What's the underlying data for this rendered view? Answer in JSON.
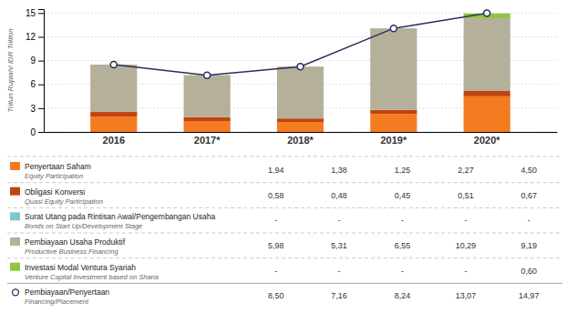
{
  "chart_data": {
    "type": "bar",
    "stacked": true,
    "grid": true,
    "ylabel": "Triliun Rupiah/ IDR Trillion",
    "categories": [
      "2016",
      "2017*",
      "2018*",
      "2019*",
      "2020*"
    ],
    "ylim": [
      0,
      15.5
    ],
    "yticks": [
      0,
      3,
      6,
      9,
      12,
      15
    ],
    "series": [
      {
        "name": "Penyertaan Saham",
        "name_en": "Equity Participation",
        "type": "bar",
        "color": "#F47B20",
        "values": [
          1.94,
          1.38,
          1.25,
          2.27,
          4.5
        ],
        "value_labels": [
          "1,94",
          "1,38",
          "1,25",
          "2,27",
          "4,50"
        ]
      },
      {
        "name": "Obligasi Konversi",
        "name_en": "Quasi Equity Participation",
        "type": "bar",
        "color": "#C1440E",
        "values": [
          0.58,
          0.48,
          0.45,
          0.51,
          0.67
        ],
        "value_labels": [
          "0,58",
          "0,48",
          "0,45",
          "0,51",
          "0,67"
        ]
      },
      {
        "name": "Surat Utang pada Rintisan Awal/Pengembangan Usaha",
        "name_en": "Bonds on Start Up/Development Stage",
        "type": "bar",
        "color": "#7EC8C8",
        "values": [
          0.0,
          0.0,
          0.0,
          0.0,
          0.0
        ],
        "value_labels": [
          "-",
          "-",
          "-",
          "-",
          "-"
        ]
      },
      {
        "name": "Pembiayaan Usaha Produktif",
        "name_en": "Productive Business Financing",
        "type": "bar",
        "color": "#B5B09A",
        "values": [
          5.98,
          5.31,
          6.55,
          10.29,
          9.19
        ],
        "value_labels": [
          "5,98",
          "5,31",
          "6,55",
          "10,29",
          "9,19"
        ]
      },
      {
        "name": "Investasi Modal Ventura Syariah",
        "name_en": "Venture Capital Investment based on Sharia",
        "type": "bar",
        "color": "#8DC63F",
        "values": [
          0.0,
          0.0,
          0.0,
          0.0,
          0.6
        ],
        "value_labels": [
          "-",
          "-",
          "-",
          "-",
          "0,60"
        ]
      },
      {
        "name": "Pembiayaan/Penyertaan",
        "name_en": "Financing/Placement",
        "type": "line",
        "color": "#2B2B5E",
        "marker": "circle",
        "line_style": "solid",
        "values": [
          8.5,
          7.16,
          8.24,
          13.07,
          14.97
        ],
        "value_labels": [
          "8,50",
          "7,16",
          "8,24",
          "13,07",
          "14,97"
        ]
      }
    ]
  }
}
